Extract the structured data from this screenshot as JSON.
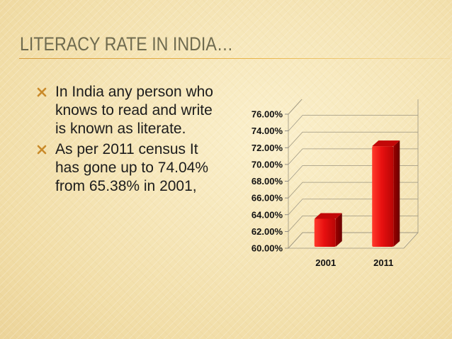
{
  "slide": {
    "title": "LITERACY RATE IN INDIA…",
    "bullets": [
      "In India any person who knows to read and write is known as literate.",
      "As per 2011 census It has gone up to 74.04% from 65.38% in 2001,"
    ],
    "bullet_icon": "x-mark-icon",
    "colors": {
      "title": "#6e6a4f",
      "accent": "#e9b54a",
      "bar": "#e01414"
    }
  },
  "chart_data": {
    "type": "bar",
    "categories": [
      "2001",
      "2011"
    ],
    "values": [
      65.38,
      74.04
    ],
    "ylim": [
      60,
      76
    ],
    "yticks": [
      "60.00%",
      "62.00%",
      "64.00%",
      "66.00%",
      "68.00%",
      "70.00%",
      "72.00%",
      "74.00%",
      "76.00%"
    ],
    "title": "",
    "xlabel": "",
    "ylabel": "",
    "grid": true,
    "legend": "none",
    "style": "3d-column"
  }
}
